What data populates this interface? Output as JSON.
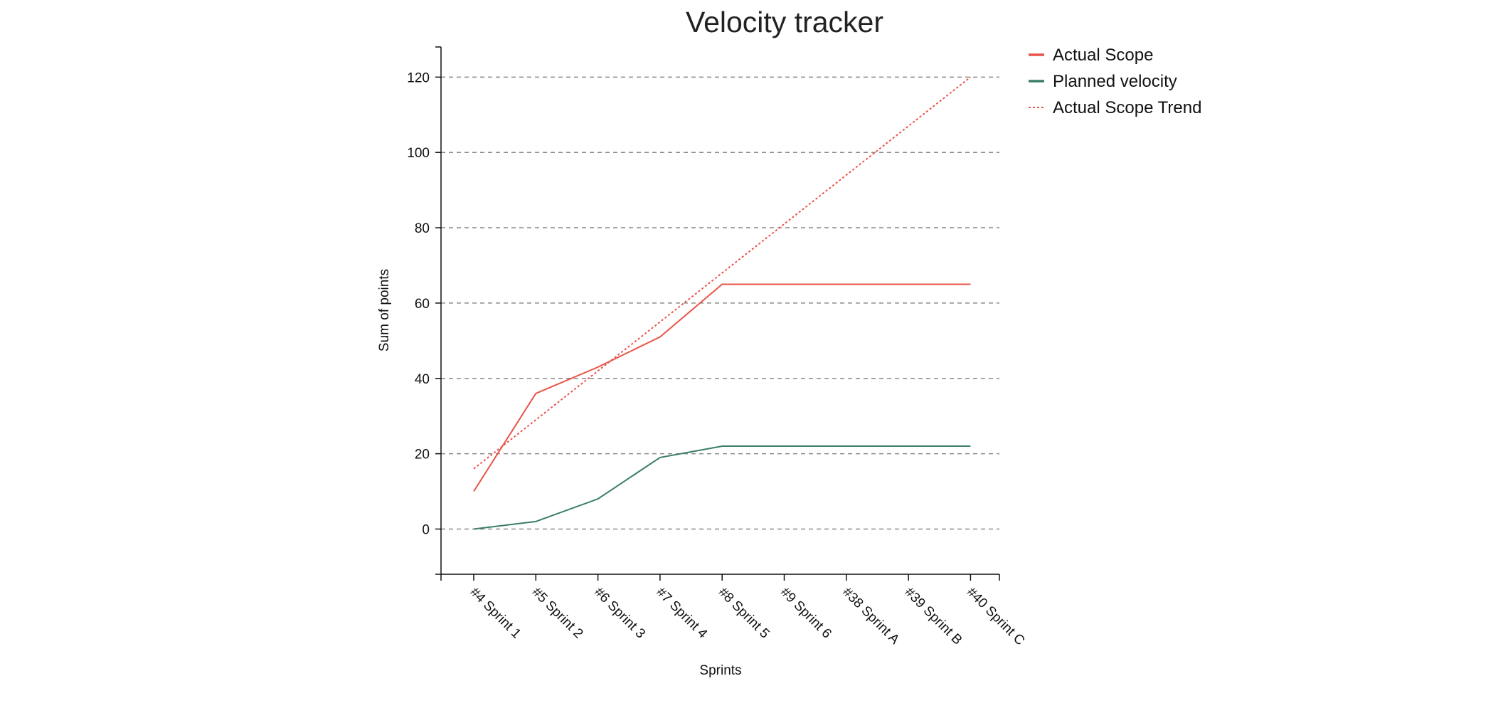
{
  "chart_data": {
    "type": "line",
    "title": "Velocity tracker",
    "xlabel": "Sprints",
    "ylabel": "Sum of points",
    "ylim": [
      -12,
      128
    ],
    "yticks": [
      0,
      20,
      40,
      60,
      80,
      100,
      120
    ],
    "grid": "horizontal-dashed",
    "legend_position": "top-right",
    "categories": [
      "#4 Sprint 1",
      "#5 Sprint 2",
      "#6 Sprint 3",
      "#7 Sprint 4",
      "#8 Sprint 5",
      "#9 Sprint 6",
      "#38 Sprint A",
      "#39 Sprint B",
      "#40 Sprint C"
    ],
    "series": [
      {
        "name": "Actual Scope",
        "color": "#e8544a",
        "style": "solid",
        "values": [
          10,
          36,
          43,
          51,
          65,
          65,
          65,
          65,
          65
        ]
      },
      {
        "name": "Planned velocity",
        "color": "#3a7d6b",
        "style": "solid",
        "values": [
          0,
          2,
          8,
          19,
          22,
          22,
          22,
          22,
          22
        ]
      },
      {
        "name": "Actual Scope Trend",
        "color": "#e8544a",
        "style": "dotted",
        "values": [
          16,
          29,
          42,
          55,
          68,
          81,
          94,
          107,
          120
        ]
      }
    ]
  }
}
